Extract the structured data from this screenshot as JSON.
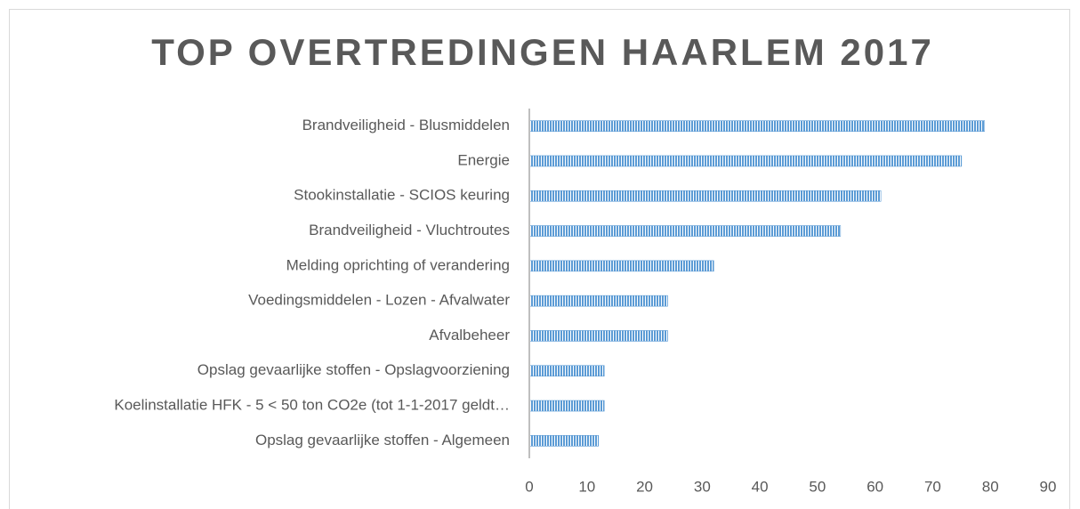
{
  "chart_data": {
    "type": "barh",
    "title": "TOP OVERTREDINGEN HAARLEM 2017",
    "categories": [
      "Brandveiligheid - Blusmiddelen",
      "Energie",
      "Stookinstallatie - SCIOS keuring",
      "Brandveiligheid - Vluchtroutes",
      "Melding oprichting of verandering",
      "Voedingsmiddelen - Lozen - Afvalwater",
      "Afvalbeheer",
      "Opslag gevaarlijke stoffen - Opslagvoorziening",
      "Koelinstallatie HFK - 5 < 50 ton CO2e (tot 1-1-2017 geldt…",
      "Opslag gevaarlijke stoffen - Algemeen"
    ],
    "values": [
      79,
      75,
      61,
      54,
      32,
      24,
      24,
      13,
      13,
      12
    ],
    "color": "#5b9bd5",
    "xlim": [
      0,
      90
    ],
    "xticks": [
      0,
      10,
      20,
      30,
      40,
      50,
      60,
      70,
      80,
      90
    ],
    "grid": false
  }
}
